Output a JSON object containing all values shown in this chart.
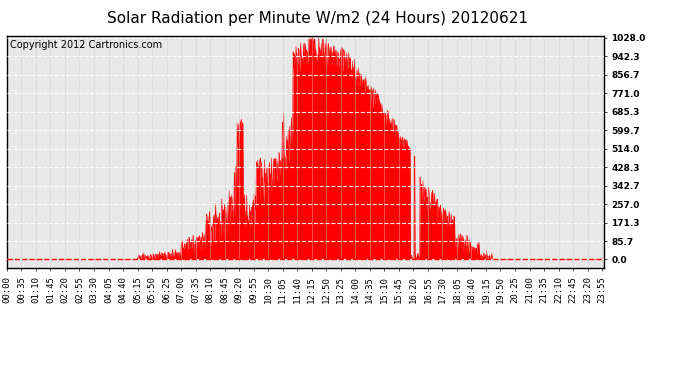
{
  "title": "Solar Radiation per Minute W/m2 (24 Hours) 20120621",
  "copyright_text": "Copyright 2012 Cartronics.com",
  "yticks": [
    0.0,
    85.7,
    171.3,
    257.0,
    342.7,
    428.3,
    514.0,
    599.7,
    685.3,
    771.0,
    856.7,
    942.3,
    1028.0
  ],
  "ymax": 1028.0,
  "fill_color": "#ff0000",
  "line_color": "#ff0000",
  "bg_color": "#ffffff",
  "plot_bg_color": "#e8e8e8",
  "grid_h_color": "#ffffff",
  "grid_v_color": "#cccccc",
  "dashed_line_color": "#ff0000",
  "title_fontsize": 11,
  "copyright_fontsize": 7,
  "tick_fontsize": 6.5,
  "tick_interval": 35
}
